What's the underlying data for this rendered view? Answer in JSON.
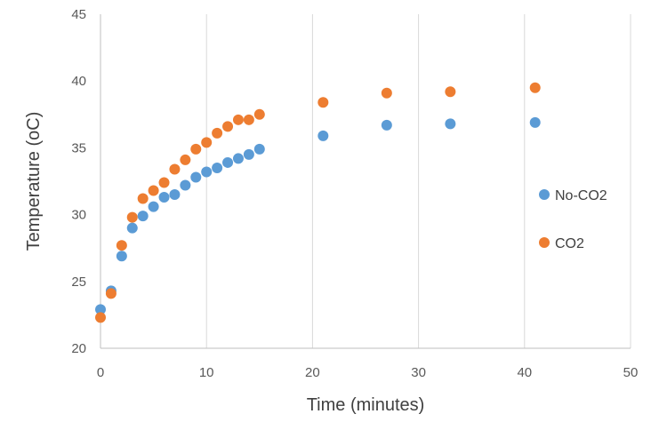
{
  "chart_data": {
    "type": "scatter",
    "title": "",
    "xlabel": "Time (minutes)",
    "ylabel": "Temperature (oC)",
    "xlim": [
      0,
      50
    ],
    "ylim": [
      20,
      45
    ],
    "x_ticks": [
      0,
      10,
      20,
      30,
      40,
      50
    ],
    "y_ticks": [
      20,
      25,
      30,
      35,
      40,
      45
    ],
    "grid": "vertical",
    "legend": "right",
    "series": [
      {
        "name": "No-CO2",
        "color": "#5B9BD5",
        "x": [
          0,
          1,
          2,
          3,
          4,
          5,
          6,
          7,
          8,
          9,
          10,
          11,
          12,
          13,
          14,
          15,
          21,
          27,
          33,
          41
        ],
        "y": [
          22.9,
          24.3,
          26.9,
          29.0,
          29.9,
          30.6,
          31.3,
          31.5,
          32.2,
          32.8,
          33.2,
          33.5,
          33.9,
          34.2,
          34.5,
          34.9,
          35.9,
          36.7,
          36.8,
          36.9
        ]
      },
      {
        "name": "CO2",
        "color": "#ED7D31",
        "x": [
          0,
          1,
          2,
          3,
          4,
          5,
          6,
          7,
          8,
          9,
          10,
          11,
          12,
          13,
          14,
          15,
          21,
          27,
          33,
          41
        ],
        "y": [
          22.3,
          24.1,
          27.7,
          29.8,
          31.2,
          31.8,
          32.4,
          33.4,
          34.1,
          34.9,
          35.4,
          36.1,
          36.6,
          37.1,
          37.1,
          37.5,
          38.4,
          39.1,
          39.2,
          39.5
        ]
      }
    ]
  }
}
